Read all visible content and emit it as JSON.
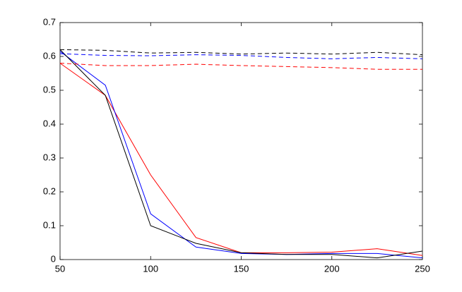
{
  "chart_data": {
    "type": "line",
    "x": [
      50,
      75,
      100,
      125,
      150,
      175,
      200,
      225,
      250
    ],
    "series": [
      {
        "color": "#ff0000",
        "dash": false,
        "values": [
          0.58,
          0.485,
          0.25,
          0.065,
          0.02,
          0.02,
          0.022,
          0.032,
          0.012
        ]
      },
      {
        "color": "#0000ff",
        "dash": false,
        "values": [
          0.615,
          0.515,
          0.135,
          0.037,
          0.018,
          0.015,
          0.018,
          0.018,
          0.005
        ]
      },
      {
        "color": "#000000",
        "dash": false,
        "values": [
          0.62,
          0.485,
          0.1,
          0.048,
          0.02,
          0.015,
          0.015,
          0.005,
          0.025
        ]
      },
      {
        "color": "#000000",
        "dash": true,
        "values": [
          0.62,
          0.618,
          0.61,
          0.612,
          0.607,
          0.61,
          0.607,
          0.612,
          0.605
        ]
      },
      {
        "color": "#0000ff",
        "dash": true,
        "values": [
          0.608,
          0.603,
          0.602,
          0.605,
          0.603,
          0.597,
          0.593,
          0.597,
          0.593
        ]
      },
      {
        "color": "#ff0000",
        "dash": true,
        "values": [
          0.58,
          0.573,
          0.573,
          0.577,
          0.573,
          0.57,
          0.567,
          0.562,
          0.562
        ]
      }
    ],
    "xlim": [
      50,
      250
    ],
    "xticks": [
      50,
      100,
      150,
      200,
      250
    ],
    "ylim": [
      0,
      0.7
    ],
    "yticks": [
      0,
      0.1,
      0.2,
      0.3,
      0.4,
      0.5,
      0.6,
      0.7
    ],
    "grid": false
  }
}
